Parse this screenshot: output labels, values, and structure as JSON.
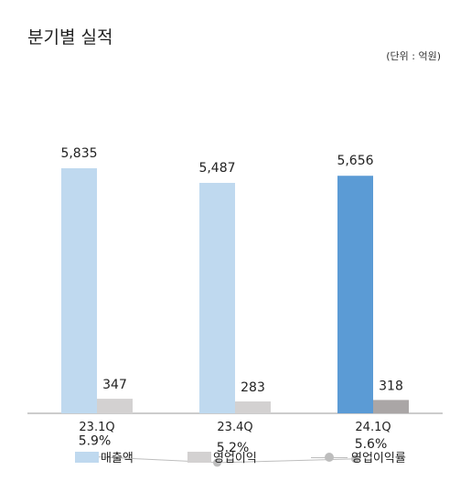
{
  "title": "분기별 실적",
  "unit": "(단위 : 억원)",
  "chart_data": {
    "type": "bar",
    "categories": [
      "23.1Q",
      "23.4Q",
      "24.1Q"
    ],
    "series": [
      {
        "name": "매출액",
        "type": "bar",
        "values": [
          5835,
          5487,
          5656
        ],
        "labels": [
          "5,835",
          "5,487",
          "5,656"
        ],
        "colors": [
          "#bfd9ef",
          "#bfd9ef",
          "#5b9bd5"
        ]
      },
      {
        "name": "영업이익",
        "type": "bar",
        "values": [
          347,
          283,
          318
        ],
        "labels": [
          "347",
          "283",
          "318"
        ],
        "colors": [
          "#d3d1d1",
          "#d3d1d1",
          "#aaa6a6"
        ]
      },
      {
        "name": "영업이익률",
        "type": "line",
        "values": [
          5.9,
          5.2,
          5.6
        ],
        "labels": [
          "5.9%",
          "5.2%",
          "5.6%"
        ],
        "colors": [
          "#bdbdbd"
        ]
      }
    ],
    "ylim": [
      0,
      7000
    ],
    "line_ylim": [
      0,
      25
    ],
    "grid": false,
    "legend": "bottom"
  },
  "legend": {
    "revenue": "매출액",
    "op_income": "영업이익",
    "op_margin": "영업이익률"
  }
}
